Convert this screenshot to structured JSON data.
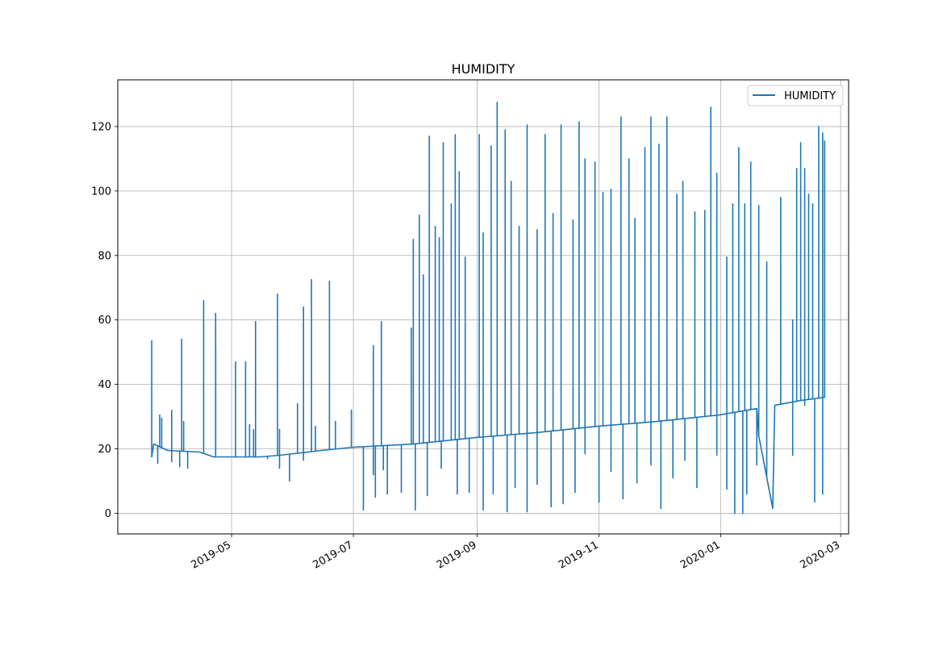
{
  "chart_data": {
    "type": "line",
    "title": "HUMIDITY",
    "xlabel": "",
    "ylabel": "",
    "x_axis": {
      "kind": "date",
      "range": [
        "2019-03-05",
        "2020-03-05"
      ],
      "ticks": [
        "2019-05-01",
        "2019-07-01",
        "2019-09-01",
        "2019-11-01",
        "2020-01-01",
        "2020-03-01"
      ],
      "tick_labels": [
        "2019-05",
        "2019-07",
        "2019-09",
        "2019-11",
        "2020-01",
        "2020-03"
      ]
    },
    "y_axis": {
      "range": [
        -6.4,
        134.5
      ],
      "ticks": [
        0,
        20,
        40,
        60,
        80,
        100,
        120
      ],
      "tick_labels": [
        "0",
        "20",
        "40",
        "60",
        "80",
        "100",
        "120"
      ]
    },
    "grid": true,
    "legend": {
      "position": "top-right",
      "entries": [
        "HUMIDITY"
      ]
    },
    "color": "#1f77b4",
    "baseline": [
      [
        "2019-03-22",
        17.5
      ],
      [
        "2019-03-23",
        21.5
      ],
      [
        "2019-03-30",
        19.5
      ],
      [
        "2019-04-15",
        19.0
      ],
      [
        "2019-04-22",
        17.5
      ],
      [
        "2019-05-15",
        17.5
      ],
      [
        "2019-05-25",
        18.0
      ],
      [
        "2019-06-15",
        19.5
      ],
      [
        "2019-07-01",
        20.5
      ],
      [
        "2019-07-31",
        21.5
      ],
      [
        "2019-08-31",
        23.5
      ],
      [
        "2019-09-30",
        25.0
      ],
      [
        "2019-10-31",
        27.0
      ],
      [
        "2019-11-30",
        28.5
      ],
      [
        "2019-12-31",
        30.5
      ],
      [
        "2020-01-19",
        32.5
      ],
      [
        "2020-01-20",
        24.0
      ],
      [
        "2020-01-27",
        1.5
      ],
      [
        "2020-01-28",
        33.5
      ],
      [
        "2020-02-10",
        35.0
      ],
      [
        "2020-02-22",
        36.0
      ]
    ],
    "spikes": [
      [
        "2019-03-22",
        53.5
      ],
      [
        "2019-03-25",
        15.5
      ],
      [
        "2019-03-26",
        30.5
      ],
      [
        "2019-03-27",
        29.5
      ],
      [
        "2019-04-01",
        32.0
      ],
      [
        "2019-04-01",
        16.0
      ],
      [
        "2019-04-05",
        14.5
      ],
      [
        "2019-04-06",
        54.0
      ],
      [
        "2019-04-07",
        28.5
      ],
      [
        "2019-04-09",
        14.0
      ],
      [
        "2019-04-17",
        66.0
      ],
      [
        "2019-04-23",
        62.0
      ],
      [
        "2019-04-23",
        51.5
      ],
      [
        "2019-05-03",
        47.0
      ],
      [
        "2019-05-08",
        47.0
      ],
      [
        "2019-05-10",
        27.5
      ],
      [
        "2019-05-12",
        26.0
      ],
      [
        "2019-05-13",
        59.5
      ],
      [
        "2019-05-19",
        17.0
      ],
      [
        "2019-05-24",
        68.0
      ],
      [
        "2019-05-25",
        26.0
      ],
      [
        "2019-05-25",
        14.0
      ],
      [
        "2019-05-30",
        10.0
      ],
      [
        "2019-06-03",
        34.0
      ],
      [
        "2019-06-06",
        64.0
      ],
      [
        "2019-06-06",
        16.5
      ],
      [
        "2019-06-10",
        72.5
      ],
      [
        "2019-06-12",
        27.0
      ],
      [
        "2019-06-19",
        72.0
      ],
      [
        "2019-06-22",
        28.5
      ],
      [
        "2019-06-30",
        32.0
      ],
      [
        "2019-07-11",
        52.0
      ],
      [
        "2019-07-11",
        12.0
      ],
      [
        "2019-07-15",
        59.5
      ],
      [
        "2019-07-16",
        13.5
      ],
      [
        "2019-07-30",
        57.5
      ],
      [
        "2019-07-31",
        85.0
      ],
      [
        "2019-08-03",
        92.5
      ],
      [
        "2019-08-05",
        74.0
      ],
      [
        "2019-08-08",
        117.0
      ],
      [
        "2019-08-11",
        89.0
      ],
      [
        "2019-08-13",
        85.5
      ],
      [
        "2019-08-15",
        115.0
      ],
      [
        "2019-08-19",
        96.0
      ],
      [
        "2019-08-21",
        117.5
      ],
      [
        "2019-08-23",
        106.0
      ],
      [
        "2019-08-26",
        79.5
      ],
      [
        "2019-09-02",
        117.5
      ],
      [
        "2019-09-04",
        87.0
      ],
      [
        "2019-09-08",
        114.0
      ],
      [
        "2019-09-11",
        127.5
      ],
      [
        "2019-09-15",
        119.0
      ],
      [
        "2019-09-18",
        103.0
      ],
      [
        "2019-09-22",
        89.0
      ],
      [
        "2019-09-26",
        120.5
      ],
      [
        "2019-10-01",
        88.0
      ],
      [
        "2019-10-05",
        117.5
      ],
      [
        "2019-10-09",
        93.0
      ],
      [
        "2019-10-13",
        120.5
      ],
      [
        "2019-10-19",
        91.0
      ],
      [
        "2019-10-22",
        121.5
      ],
      [
        "2019-10-25",
        110.0
      ],
      [
        "2019-10-30",
        109.0
      ],
      [
        "2019-11-03",
        99.5
      ],
      [
        "2019-11-07",
        100.5
      ],
      [
        "2019-11-12",
        123.0
      ],
      [
        "2019-11-16",
        110.0
      ],
      [
        "2019-11-19",
        91.5
      ],
      [
        "2019-11-24",
        113.5
      ],
      [
        "2019-11-27",
        123.0
      ],
      [
        "2019-12-01",
        114.5
      ],
      [
        "2019-12-05",
        123.0
      ],
      [
        "2019-12-10",
        99.0
      ],
      [
        "2019-12-13",
        103.0
      ],
      [
        "2019-12-19",
        93.5
      ],
      [
        "2019-12-24",
        94.0
      ],
      [
        "2019-12-27",
        126.0
      ],
      [
        "2019-12-30",
        105.5
      ],
      [
        "2020-01-04",
        79.5
      ],
      [
        "2020-01-07",
        96.0
      ],
      [
        "2020-01-10",
        113.5
      ],
      [
        "2020-01-13",
        96.0
      ],
      [
        "2020-01-16",
        109.0
      ],
      [
        "2020-01-20",
        95.5
      ],
      [
        "2020-01-24",
        78.0
      ],
      [
        "2020-01-31",
        98.0
      ],
      [
        "2020-02-06",
        60.0
      ],
      [
        "2020-02-08",
        107.0
      ],
      [
        "2020-02-10",
        115.0
      ],
      [
        "2020-02-12",
        107.0
      ],
      [
        "2020-02-14",
        99.0
      ],
      [
        "2020-02-16",
        96.0
      ],
      [
        "2020-02-19",
        120.0
      ],
      [
        "2020-02-21",
        118.0
      ],
      [
        "2020-02-22",
        115.5
      ],
      [
        "2019-07-06",
        1.0
      ],
      [
        "2019-07-12",
        5.0
      ],
      [
        "2019-07-18",
        6.0
      ],
      [
        "2019-07-25",
        6.5
      ],
      [
        "2019-08-01",
        1.0
      ],
      [
        "2019-08-07",
        5.5
      ],
      [
        "2019-08-14",
        14.0
      ],
      [
        "2019-08-22",
        6.0
      ],
      [
        "2019-08-28",
        6.5
      ],
      [
        "2019-09-04",
        1.0
      ],
      [
        "2019-09-09",
        6.0
      ],
      [
        "2019-09-16",
        0.5
      ],
      [
        "2019-09-20",
        8.0
      ],
      [
        "2019-09-26",
        0.5
      ],
      [
        "2019-10-01",
        9.0
      ],
      [
        "2019-10-08",
        2.0
      ],
      [
        "2019-10-14",
        3.0
      ],
      [
        "2019-10-20",
        6.5
      ],
      [
        "2019-10-25",
        18.5
      ],
      [
        "2019-11-01",
        3.5
      ],
      [
        "2019-11-07",
        13.0
      ],
      [
        "2019-11-13",
        4.5
      ],
      [
        "2019-11-20",
        9.5
      ],
      [
        "2019-11-27",
        15.0
      ],
      [
        "2019-12-02",
        1.5
      ],
      [
        "2019-12-08",
        11.0
      ],
      [
        "2019-12-14",
        16.5
      ],
      [
        "2019-12-20",
        8.0
      ],
      [
        "2019-12-30",
        18.0
      ],
      [
        "2020-01-04",
        7.5
      ],
      [
        "2020-01-08",
        0.0
      ],
      [
        "2020-01-12",
        0.0
      ],
      [
        "2020-01-14",
        6.0
      ],
      [
        "2020-01-19",
        15.0
      ],
      [
        "2020-02-06",
        18.0
      ],
      [
        "2020-02-12",
        33.5
      ],
      [
        "2020-02-17",
        3.5
      ],
      [
        "2020-02-21",
        6.0
      ]
    ]
  }
}
